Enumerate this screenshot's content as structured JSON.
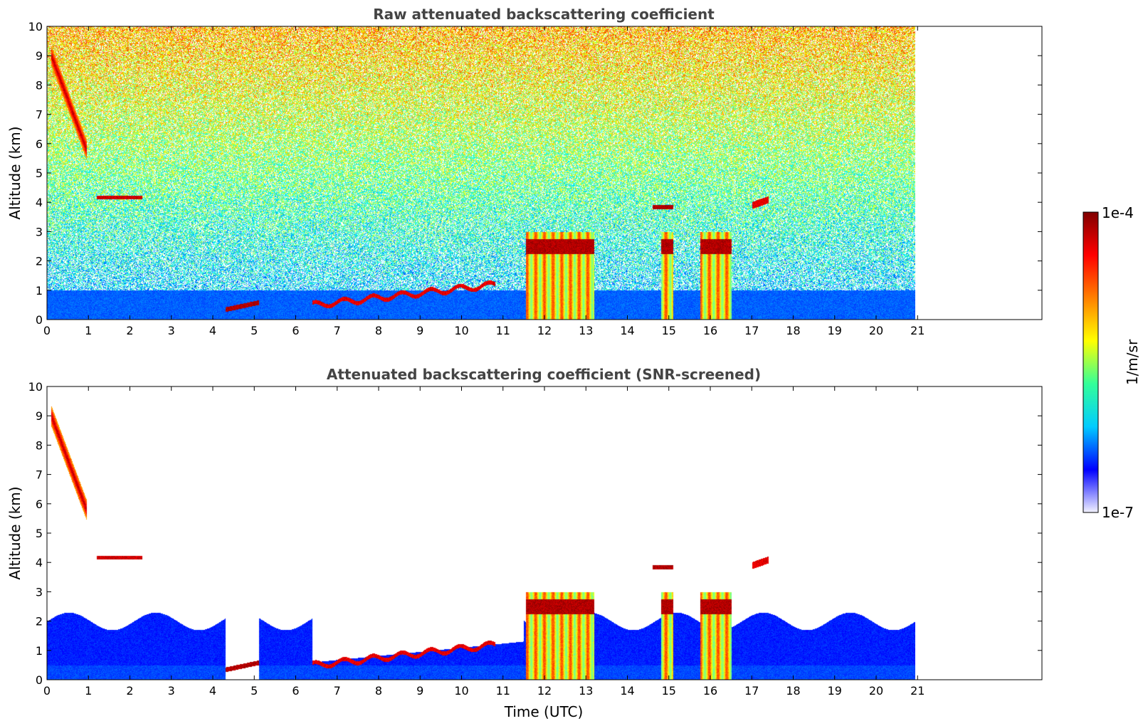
{
  "chart_data": [
    {
      "type": "heatmap",
      "title": "Raw attenuated backscattering coefficient",
      "xlabel": "",
      "ylabel": "Altitude (km)",
      "xlim": [
        0,
        24
      ],
      "ylim": [
        0,
        10
      ],
      "xticks": [
        "0",
        "1",
        "2",
        "3",
        "4",
        "5",
        "6",
        "7",
        "8",
        "9",
        "10",
        "11",
        "12",
        "13",
        "14",
        "15",
        "16",
        "17",
        "18",
        "19",
        "20",
        "21"
      ],
      "yticks": [
        "0",
        "1",
        "2",
        "3",
        "4",
        "5",
        "6",
        "7",
        "8",
        "9",
        "10"
      ],
      "data_end_time": 21,
      "screened": false,
      "features": [
        {
          "name": "cirrus fall streak",
          "x0": 0.1,
          "x1": 0.95,
          "y_top": 9.2,
          "y_bottom": 5.7,
          "intensity": 0.85
        },
        {
          "name": "thin layer",
          "x0": 1.2,
          "x1": 2.3,
          "y": 4.17,
          "intensity": 0.9
        },
        {
          "name": "low cloud",
          "x0": 4.3,
          "x1": 5.1,
          "y": 0.4,
          "intensity": 0.95
        },
        {
          "name": "boundary layer top",
          "x0": 6.4,
          "x1": 10.8,
          "y_start": 0.5,
          "y_end": 1.2,
          "intensity": 0.9
        },
        {
          "name": "convective cloud A",
          "x0": 11.5,
          "x1": 13.2,
          "top": 3.2,
          "intensity": 0.8
        },
        {
          "name": "convective cloud B",
          "x0": 14.8,
          "x1": 15.1,
          "top": 3.0,
          "intensity": 0.75
        },
        {
          "name": "convective cloud C",
          "x0": 15.7,
          "x1": 16.5,
          "top": 3.4,
          "intensity": 0.8
        },
        {
          "name": "aerosol layer",
          "x0": 17.0,
          "x1": 17.4,
          "y": 4.0,
          "intensity": 0.85
        }
      ]
    },
    {
      "type": "heatmap",
      "title": "Attenuated backscattering coefficient (SNR-screened)",
      "xlabel": "Time (UTC)",
      "ylabel": "Altitude (km)",
      "xlim": [
        0,
        24
      ],
      "ylim": [
        0,
        10
      ],
      "xticks": [
        "0",
        "1",
        "2",
        "3",
        "4",
        "5",
        "6",
        "7",
        "8",
        "9",
        "10",
        "11",
        "12",
        "13",
        "14",
        "15",
        "16",
        "17",
        "18",
        "19",
        "20",
        "21"
      ],
      "yticks": [
        "0",
        "1",
        "2",
        "3",
        "4",
        "5",
        "6",
        "7",
        "8",
        "9",
        "10"
      ],
      "data_end_time": 21,
      "screened": true
    }
  ],
  "colorbar": {
    "label": "1/m/sr",
    "max_label": "1e-4",
    "min_label": "1e-7",
    "scale": "log",
    "colormap": "jet",
    "colors": [
      "#f2f2ff",
      "#0000ff",
      "#00ccff",
      "#33ff99",
      "#ffff00",
      "#ff8000",
      "#ff0000",
      "#800000"
    ]
  }
}
